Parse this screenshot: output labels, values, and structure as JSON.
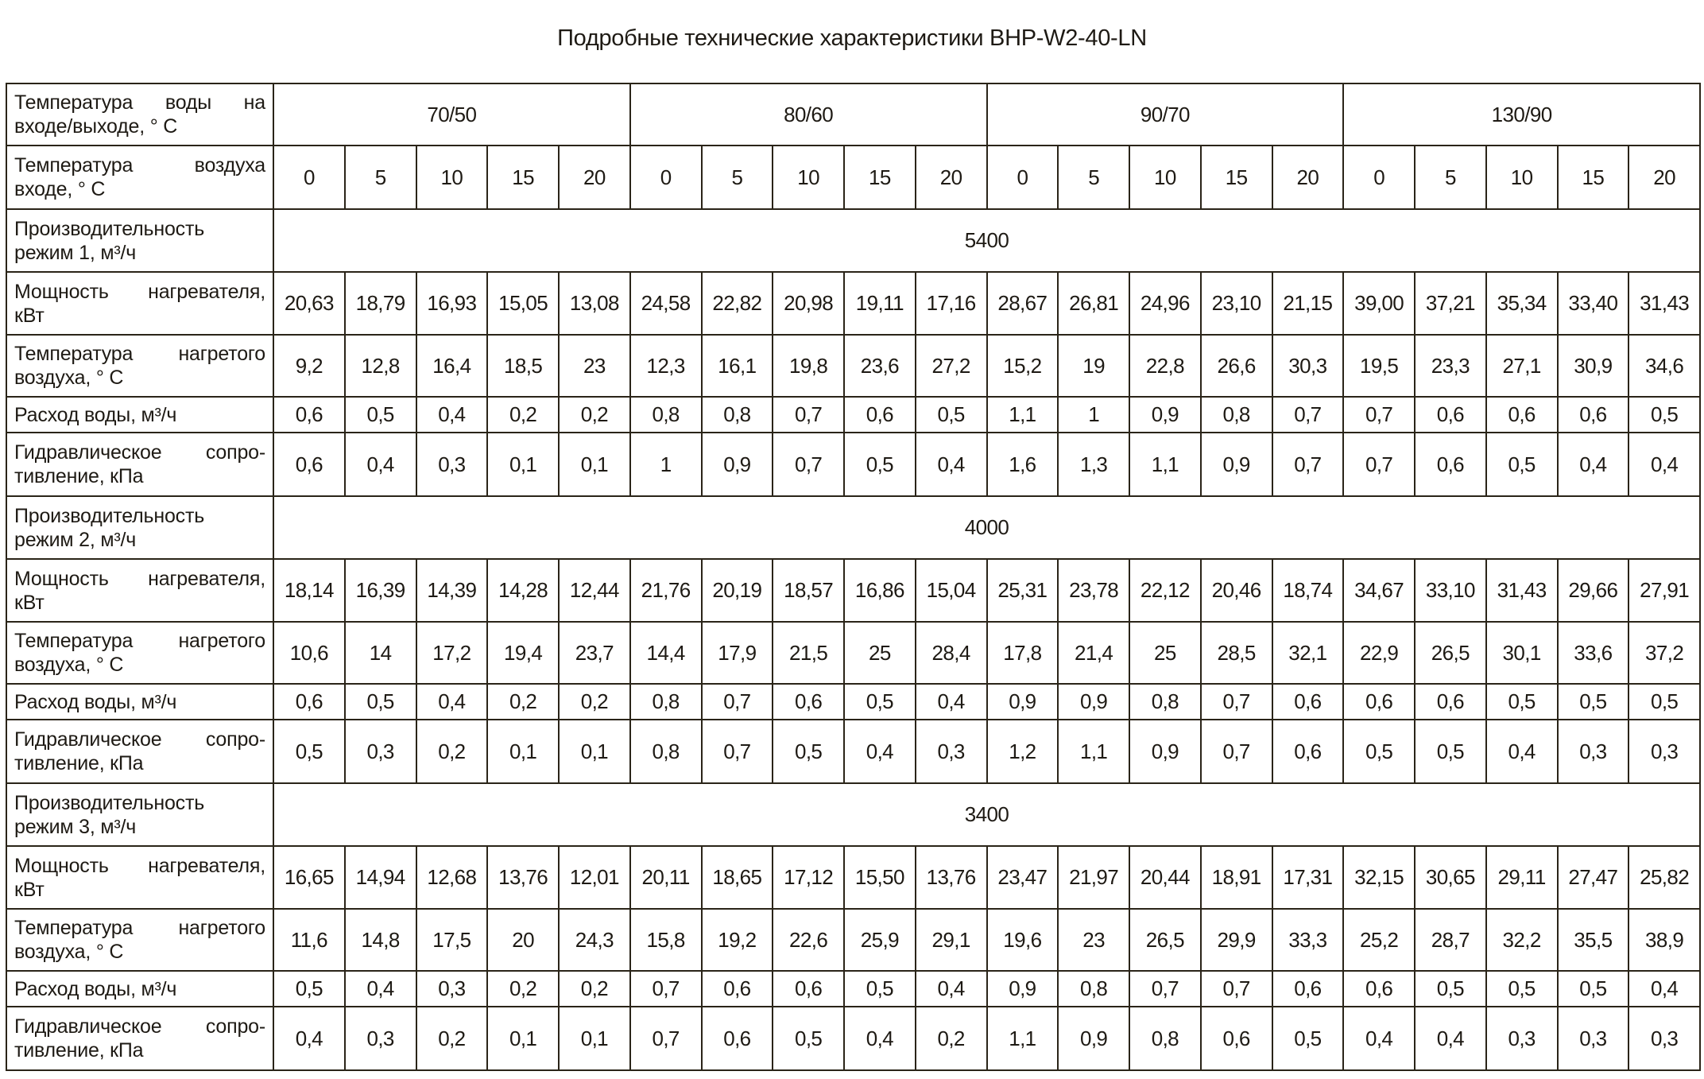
{
  "title": "Подробные технические характеристики BHP-W2-40-LN",
  "header": {
    "inlet_label": "Температура воды на входе/выходе, ° С",
    "groups": [
      "70/50",
      "80/60",
      "90/70",
      "130/90"
    ],
    "air_label": "Температура воздуха входе, ° С",
    "air_temps": [
      "0",
      "5",
      "10",
      "15",
      "20"
    ]
  },
  "modes": [
    {
      "label": "Производительность режим 1, м³/ч",
      "value": "5400",
      "rows": [
        {
          "label": "Мощность нагревателя, кВт",
          "values": [
            "20,63",
            "18,79",
            "16,93",
            "15,05",
            "13,08",
            "24,58",
            "22,82",
            "20,98",
            "19,11",
            "17,16",
            "28,67",
            "26,81",
            "24,96",
            "23,10",
            "21,15",
            "39,00",
            "37,21",
            "35,34",
            "33,40",
            "31,43"
          ]
        },
        {
          "label": "Температура нагретого воздуха, ° С",
          "values": [
            "9,2",
            "12,8",
            "16,4",
            "18,5",
            "23",
            "12,3",
            "16,1",
            "19,8",
            "23,6",
            "27,2",
            "15,2",
            "19",
            "22,8",
            "26,6",
            "30,3",
            "19,5",
            "23,3",
            "27,1",
            "30,9",
            "34,6"
          ]
        },
        {
          "label": "Расход воды, м³/ч",
          "values": [
            "0,6",
            "0,5",
            "0,4",
            "0,2",
            "0,2",
            "0,8",
            "0,8",
            "0,7",
            "0,6",
            "0,5",
            "1,1",
            "1",
            "0,9",
            "0,8",
            "0,7",
            "0,7",
            "0,6",
            "0,6",
            "0,6",
            "0,5"
          ]
        },
        {
          "label": "Гидравлическое сопро-тивление, кПа",
          "values": [
            "0,6",
            "0,4",
            "0,3",
            "0,1",
            "0,1",
            "1",
            "0,9",
            "0,7",
            "0,5",
            "0,4",
            "1,6",
            "1,3",
            "1,1",
            "0,9",
            "0,7",
            "0,7",
            "0,6",
            "0,5",
            "0,4",
            "0,4"
          ]
        }
      ]
    },
    {
      "label": "Производительность режим 2, м³/ч",
      "value": "4000",
      "rows": [
        {
          "label": "Мощность нагревателя, кВт",
          "values": [
            "18,14",
            "16,39",
            "14,39",
            "14,28",
            "12,44",
            "21,76",
            "20,19",
            "18,57",
            "16,86",
            "15,04",
            "25,31",
            "23,78",
            "22,12",
            "20,46",
            "18,74",
            "34,67",
            "33,10",
            "31,43",
            "29,66",
            "27,91"
          ]
        },
        {
          "label": "Температура нагретого воздуха, ° С",
          "values": [
            "10,6",
            "14",
            "17,2",
            "19,4",
            "23,7",
            "14,4",
            "17,9",
            "21,5",
            "25",
            "28,4",
            "17,8",
            "21,4",
            "25",
            "28,5",
            "32,1",
            "22,9",
            "26,5",
            "30,1",
            "33,6",
            "37,2"
          ]
        },
        {
          "label": "Расход воды, м³/ч",
          "values": [
            "0,6",
            "0,5",
            "0,4",
            "0,2",
            "0,2",
            "0,8",
            "0,7",
            "0,6",
            "0,5",
            "0,4",
            "0,9",
            "0,9",
            "0,8",
            "0,7",
            "0,6",
            "0,6",
            "0,6",
            "0,5",
            "0,5",
            "0,5"
          ]
        },
        {
          "label": "Гидравлическое сопро-тивление, кПа",
          "values": [
            "0,5",
            "0,3",
            "0,2",
            "0,1",
            "0,1",
            "0,8",
            "0,7",
            "0,5",
            "0,4",
            "0,3",
            "1,2",
            "1,1",
            "0,9",
            "0,7",
            "0,6",
            "0,5",
            "0,5",
            "0,4",
            "0,3",
            "0,3"
          ]
        }
      ]
    },
    {
      "label": "Производительность режим 3, м³/ч",
      "value": "3400",
      "rows": [
        {
          "label": "Мощность нагревателя, кВт",
          "values": [
            "16,65",
            "14,94",
            "12,68",
            "13,76",
            "12,01",
            "20,11",
            "18,65",
            "17,12",
            "15,50",
            "13,76",
            "23,47",
            "21,97",
            "20,44",
            "18,91",
            "17,31",
            "32,15",
            "30,65",
            "29,11",
            "27,47",
            "25,82"
          ]
        },
        {
          "label": "Температура нагретого воздуха, ° С",
          "values": [
            "11,6",
            "14,8",
            "17,5",
            "20",
            "24,3",
            "15,8",
            "19,2",
            "22,6",
            "25,9",
            "29,1",
            "19,6",
            "23",
            "26,5",
            "29,9",
            "33,3",
            "25,2",
            "28,7",
            "32,2",
            "35,5",
            "38,9"
          ]
        },
        {
          "label": "Расход воды, м³/ч",
          "values": [
            "0,5",
            "0,4",
            "0,3",
            "0,2",
            "0,2",
            "0,7",
            "0,6",
            "0,6",
            "0,5",
            "0,4",
            "0,9",
            "0,8",
            "0,7",
            "0,7",
            "0,6",
            "0,6",
            "0,5",
            "0,5",
            "0,5",
            "0,4"
          ]
        },
        {
          "label": "Гидравлическое сопро-тивление, кПа",
          "values": [
            "0,4",
            "0,3",
            "0,2",
            "0,1",
            "0,1",
            "0,7",
            "0,6",
            "0,5",
            "0,4",
            "0,2",
            "1,1",
            "0,9",
            "0,8",
            "0,6",
            "0,5",
            "0,4",
            "0,4",
            "0,3",
            "0,3",
            "0,3"
          ]
        }
      ]
    }
  ]
}
